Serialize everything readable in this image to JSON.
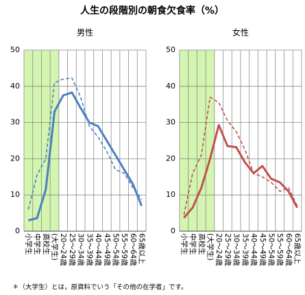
{
  "title": "人生の段階別の朝食欠食率（%）",
  "note": "＊（大学生）とは，原資料でいう「その他の在学者」です。",
  "chart_data": [
    {
      "type": "line",
      "title": "男性",
      "categories": [
        "小学生",
        "中学生",
        "高校生",
        "(大学生)",
        "20～24歳",
        "25～29歳",
        "30～34歳",
        "35～39歳",
        "40～44歳",
        "45～49歳",
        "50～54歳",
        "55～59歳",
        "60～64歳",
        "65歳以上"
      ],
      "series": [
        {
          "color": "#4a7fc1",
          "dash": false,
          "values": [
            3,
            3.6,
            11.5,
            33,
            37.5,
            38.3,
            34,
            30,
            29,
            25,
            21,
            17,
            13,
            7
          ]
        },
        {
          "color": "#4a7fc1",
          "dash": true,
          "values": [
            6,
            15.5,
            20,
            41,
            42,
            42.3,
            37,
            29,
            26,
            22,
            17,
            16,
            12,
            8.8
          ]
        }
      ],
      "ylim": [
        0,
        50
      ],
      "yticks": [
        0,
        10,
        20,
        30,
        40,
        50
      ],
      "grid": true
    },
    {
      "type": "line",
      "title": "女性",
      "categories": [
        "小学生",
        "中学生",
        "高校生",
        "(大学生)",
        "20～24歳",
        "25～29歳",
        "30～34歳",
        "35～39歳",
        "40～44歳",
        "45～49歳",
        "50～54歳",
        "55～59歳",
        "60～64歳",
        "65歳以上"
      ],
      "series": [
        {
          "color": "#c0504d",
          "dash": false,
          "values": [
            3.7,
            6.5,
            12,
            20,
            29.3,
            23.5,
            23.2,
            19,
            16,
            18,
            14.5,
            13.5,
            11,
            6.5
          ]
        },
        {
          "color": "#c0504d",
          "dash": true,
          "values": [
            4.5,
            16,
            21,
            37,
            35.5,
            30.5,
            27.5,
            22.5,
            16,
            15,
            13.5,
            11,
            12,
            7
          ]
        }
      ],
      "ylim": [
        0,
        50
      ],
      "yticks": [
        0,
        10,
        20,
        30,
        40,
        50
      ],
      "grid": true
    }
  ]
}
